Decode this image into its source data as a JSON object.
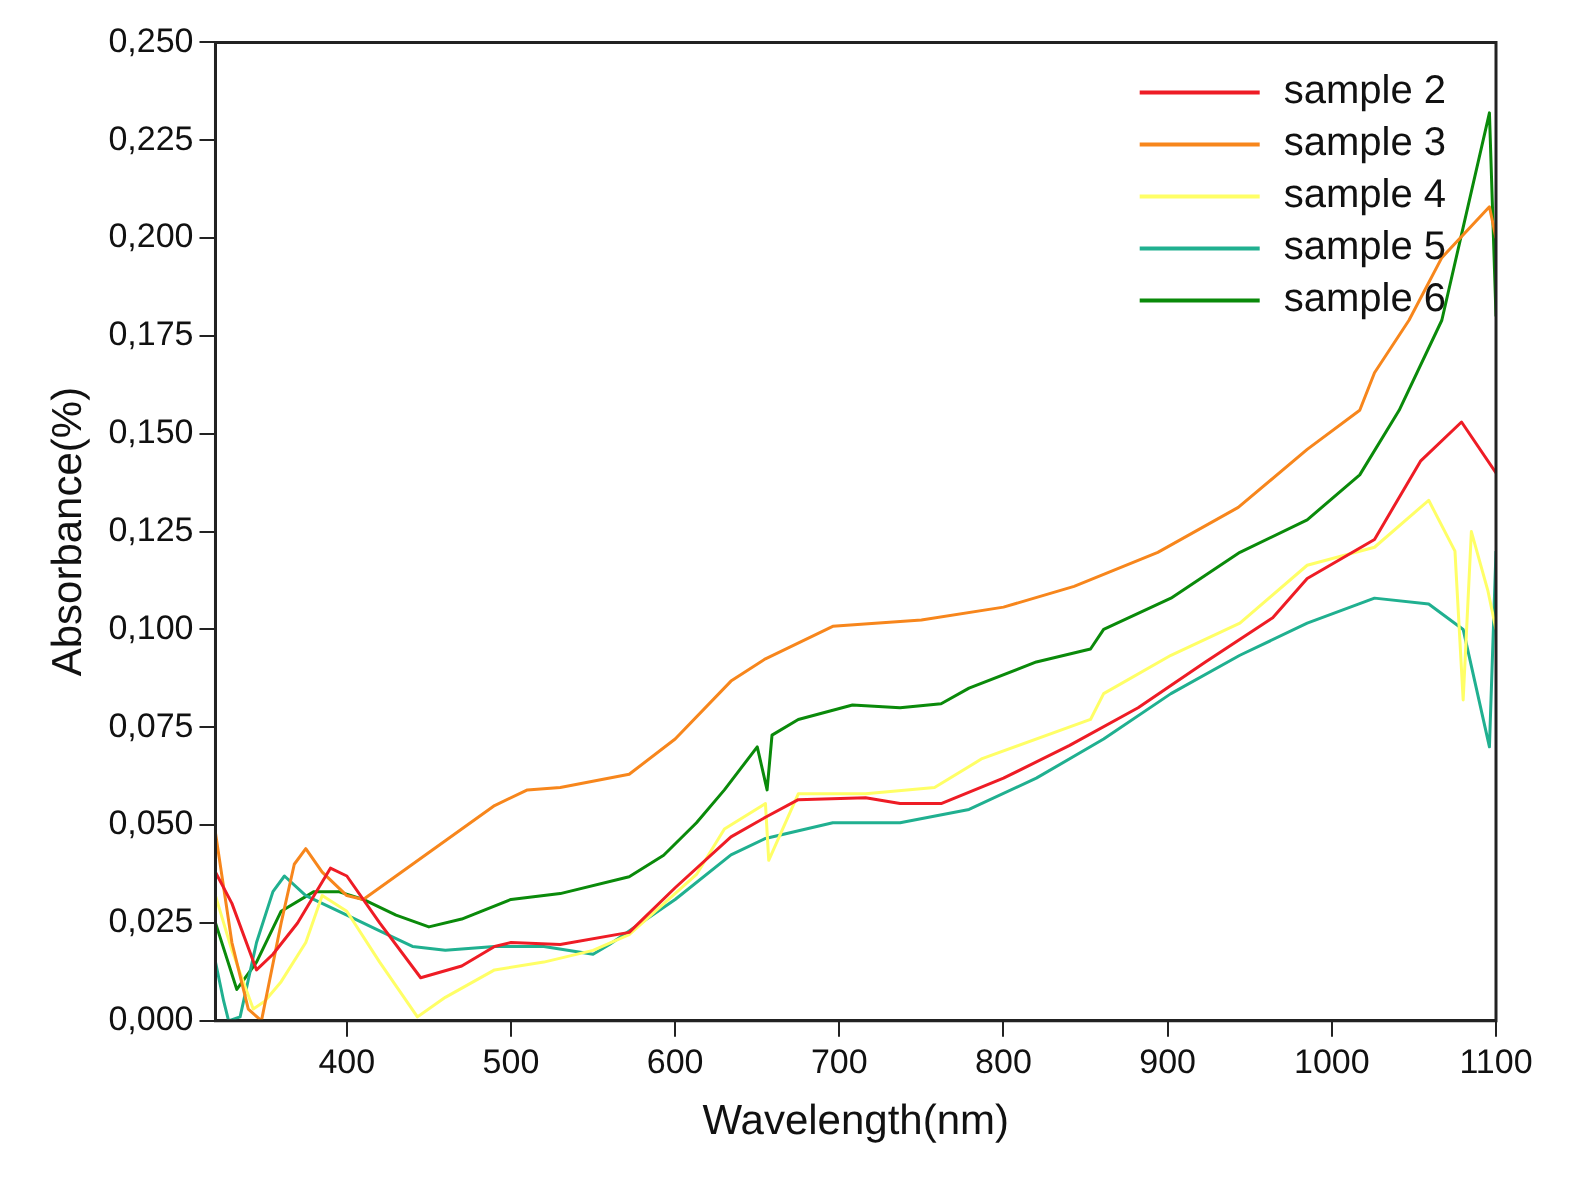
{
  "chart_data": {
    "type": "line",
    "xlabel": "Wavelength(nm)",
    "ylabel": "Absorbance(%)",
    "xlim": [
      320,
      1100
    ],
    "xticks": [
      400,
      500,
      600,
      700,
      800,
      900,
      1000,
      1100
    ],
    "ylim": [
      0,
      0.25
    ],
    "yticks": [
      {
        "value": 0,
        "label": "0,000"
      },
      {
        "value": 0.025,
        "label": "0,025"
      },
      {
        "value": 0.05,
        "label": "0,050"
      },
      {
        "value": 0.075,
        "label": "0,075"
      },
      {
        "value": 0.1,
        "label": "0,100"
      },
      {
        "value": 0.125,
        "label": "0,125"
      },
      {
        "value": 0.15,
        "label": "0,150"
      },
      {
        "value": 0.175,
        "label": "0,175"
      },
      {
        "value": 0.2,
        "label": "0,200"
      },
      {
        "value": 0.225,
        "label": "0,225"
      },
      {
        "value": 0.25,
        "label": "0,250"
      }
    ],
    "grid": false,
    "legend": "top right",
    "marker": "none",
    "line_style": "solid",
    "series": [
      {
        "name": "sample 2",
        "color": "#ee1c25",
        "x": [
          320,
          330,
          345,
          355,
          370,
          390,
          400,
          420,
          445,
          470,
          490,
          500,
          530,
          572,
          600,
          634,
          655,
          675,
          716,
          737,
          762,
          800,
          840,
          882,
          923,
          964,
          985,
          1026,
          1054,
          1079,
          1100
        ],
        "values": [
          0.038,
          0.03,
          0.013,
          0.017,
          0.025,
          0.039,
          0.037,
          0.025,
          0.011,
          0.014,
          0.019,
          0.02,
          0.0195,
          0.0226,
          0.034,
          0.047,
          0.052,
          0.0565,
          0.057,
          0.0555,
          0.0555,
          0.062,
          0.0703,
          0.08,
          0.0917,
          0.103,
          0.113,
          0.123,
          0.143,
          0.153,
          0.14
        ]
      },
      {
        "name": "sample 3",
        "color": "#f7861c",
        "x": [
          320,
          330,
          340,
          348,
          360,
          368,
          375,
          385,
          400,
          410,
          430,
          460,
          490,
          510,
          530,
          572,
          600,
          634,
          655,
          696,
          750,
          800,
          843,
          894,
          943,
          985,
          1017,
          1026,
          1047,
          1067,
          1096,
          1100
        ],
        "values": [
          0.048,
          0.02,
          0.003,
          0,
          0.025,
          0.04,
          0.044,
          0.038,
          0.032,
          0.031,
          0.037,
          0.046,
          0.055,
          0.059,
          0.0596,
          0.063,
          0.072,
          0.0868,
          0.0925,
          0.1008,
          0.1024,
          0.1057,
          0.111,
          0.1197,
          0.1312,
          0.146,
          0.156,
          0.1656,
          0.179,
          0.195,
          0.208,
          0.2
        ]
      },
      {
        "name": "sample 4",
        "color": "#ffff66",
        "x": [
          320,
          330,
          343,
          350,
          360,
          375,
          385,
          400,
          420,
          443,
          460,
          490,
          520,
          550,
          572,
          613,
          630,
          655,
          657,
          675,
          716,
          758,
          787,
          853,
          861,
          902,
          944,
          985,
          1026,
          1059,
          1075,
          1080,
          1085,
          1095,
          1100
        ],
        "values": [
          0.032,
          0.018,
          0.003,
          0.005,
          0.01,
          0.02,
          0.032,
          0.028,
          0.015,
          0.001,
          0.006,
          0.013,
          0.015,
          0.018,
          0.022,
          0.0374,
          0.049,
          0.0555,
          0.041,
          0.058,
          0.058,
          0.0596,
          0.067,
          0.077,
          0.0836,
          0.0934,
          0.1016,
          0.1164,
          0.121,
          0.133,
          0.12,
          0.082,
          0.125,
          0.11,
          0.1
        ]
      },
      {
        "name": "sample 5",
        "color": "#20b090",
        "x": [
          320,
          325,
          328,
          335,
          345,
          355,
          362,
          375,
          400,
          420,
          440,
          460,
          490,
          520,
          550,
          560,
          600,
          634,
          655,
          696,
          737,
          779,
          820,
          861,
          902,
          944,
          985,
          1026,
          1059,
          1080,
          1096,
          1100
        ],
        "values": [
          0.015,
          0.005,
          0,
          0.001,
          0.02,
          0.033,
          0.037,
          0.032,
          0.027,
          0.023,
          0.019,
          0.018,
          0.019,
          0.019,
          0.017,
          0.0195,
          0.031,
          0.0424,
          0.0466,
          0.0506,
          0.0506,
          0.054,
          0.062,
          0.072,
          0.0836,
          0.0934,
          0.1016,
          0.108,
          0.1065,
          0.1,
          0.07,
          0.12
        ]
      },
      {
        "name": "sample 6",
        "color": "#0a8a0a",
        "x": [
          320,
          333,
          345,
          360,
          380,
          395,
          410,
          430,
          450,
          470,
          500,
          530,
          572,
          593,
          613,
          630,
          650,
          656,
          659,
          675,
          708,
          737,
          762,
          779,
          820,
          853,
          861,
          902,
          944,
          985,
          1017,
          1041,
          1067,
          1096,
          1100
        ],
        "values": [
          0.025,
          0.008,
          0.015,
          0.028,
          0.033,
          0.033,
          0.031,
          0.027,
          0.024,
          0.026,
          0.031,
          0.0325,
          0.0368,
          0.0423,
          0.0506,
          0.059,
          0.07,
          0.059,
          0.073,
          0.077,
          0.0807,
          0.08,
          0.081,
          0.085,
          0.0917,
          0.095,
          0.1,
          0.108,
          0.1197,
          0.128,
          0.1395,
          0.156,
          0.179,
          0.232,
          0.18
        ]
      }
    ]
  }
}
